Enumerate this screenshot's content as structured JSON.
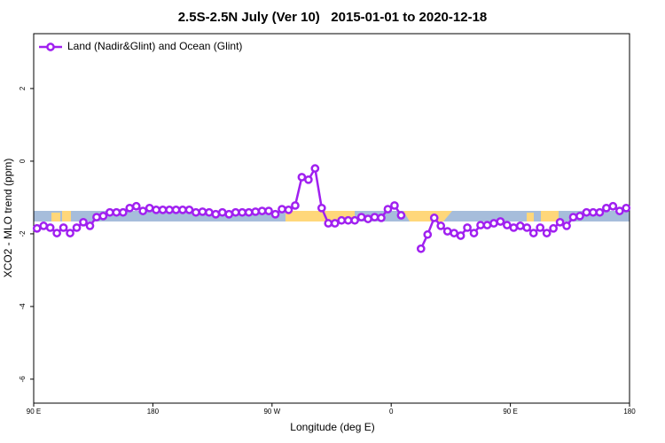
{
  "chart_data": {
    "type": "line",
    "title": "2.5S-2.5N July (Ver 10)   2015-01-01 to 2020-12-18",
    "x_label": "Longitude (deg E)",
    "y_label": "XCO2 - MLO trend (ppm)",
    "legend": "top-left",
    "grid": false,
    "xlim": [
      90,
      540
    ],
    "xticks": [
      {
        "value": 90,
        "label": "90 E"
      },
      180,
      {
        "value": 270,
        "label": "90 W"
      },
      {
        "value": 360,
        "label": "0"
      },
      {
        "value": 450,
        "label": "90 E"
      },
      {
        "value": 540,
        "label": "180"
      }
    ],
    "ylim": [
      -6.66,
      3.51
    ],
    "yticks": [
      2,
      0,
      -2,
      -4,
      -6
    ],
    "x": [
      92.5,
      97.5,
      102.5,
      107.5,
      112.5,
      117.5,
      122.5,
      127.5,
      132.5,
      137.5,
      142.5,
      147.5,
      152.5,
      157.5,
      162.5,
      167.5,
      172.5,
      177.5,
      182.5,
      187.5,
      192.5,
      197.5,
      202.5,
      207.5,
      212.5,
      217.5,
      222.5,
      227.5,
      232.5,
      237.5,
      242.5,
      247.5,
      252.5,
      257.5,
      262.5,
      267.5,
      272.5,
      277.5,
      282.5,
      287.5,
      292.5,
      297.5,
      302.5,
      307.5,
      312.5,
      317.5,
      322.5,
      327.5,
      332.5,
      337.5,
      342.5,
      347.5,
      352.5,
      357.5,
      362.5,
      367.5,
      372.5,
      377.5,
      382.5,
      387.5,
      392.5,
      397.5,
      402.5,
      407.5,
      412.5,
      417.5,
      422.5,
      427.5,
      432.5,
      437.5,
      442.5,
      447.5,
      452.5,
      457.5,
      462.5,
      467.5,
      472.5,
      477.5,
      482.5,
      487.5,
      492.5,
      497.5,
      502.5,
      507.5,
      512.5,
      517.5,
      522.5,
      527.5,
      532.5,
      537.5
    ],
    "series": [
      {
        "name": "Land (Nadir&Glint) and Ocean (Glint)",
        "color": "#a020f0",
        "values": [
          -1.85,
          -1.78,
          -1.83,
          -1.98,
          -1.83,
          -1.98,
          -1.83,
          -1.68,
          -1.78,
          -1.54,
          -1.51,
          -1.41,
          -1.41,
          -1.41,
          -1.29,
          -1.24,
          -1.37,
          -1.29,
          -1.34,
          -1.34,
          -1.34,
          -1.34,
          -1.34,
          -1.34,
          -1.41,
          -1.39,
          -1.41,
          -1.46,
          -1.41,
          -1.46,
          -1.41,
          -1.41,
          -1.41,
          -1.39,
          -1.37,
          -1.37,
          -1.46,
          -1.32,
          -1.34,
          -1.22,
          -0.44,
          -0.51,
          -0.2,
          -1.29,
          -1.71,
          -1.71,
          -1.63,
          -1.63,
          -1.63,
          -1.54,
          -1.59,
          -1.54,
          -1.56,
          -1.32,
          -1.22,
          -1.49,
          null,
          null,
          -2.41,
          -2.02,
          -1.56,
          -1.78,
          -1.93,
          -1.98,
          -2.05,
          -1.83,
          -1.98,
          -1.76,
          -1.76,
          -1.71,
          -1.66,
          -1.76,
          -1.83,
          -1.78,
          -1.83,
          -1.98,
          -1.83,
          -1.98,
          -1.85,
          -1.68,
          -1.78,
          -1.54,
          -1.51,
          -1.41,
          -1.41,
          -1.41,
          -1.29,
          -1.24,
          -1.37,
          -1.29
        ]
      }
    ]
  }
}
